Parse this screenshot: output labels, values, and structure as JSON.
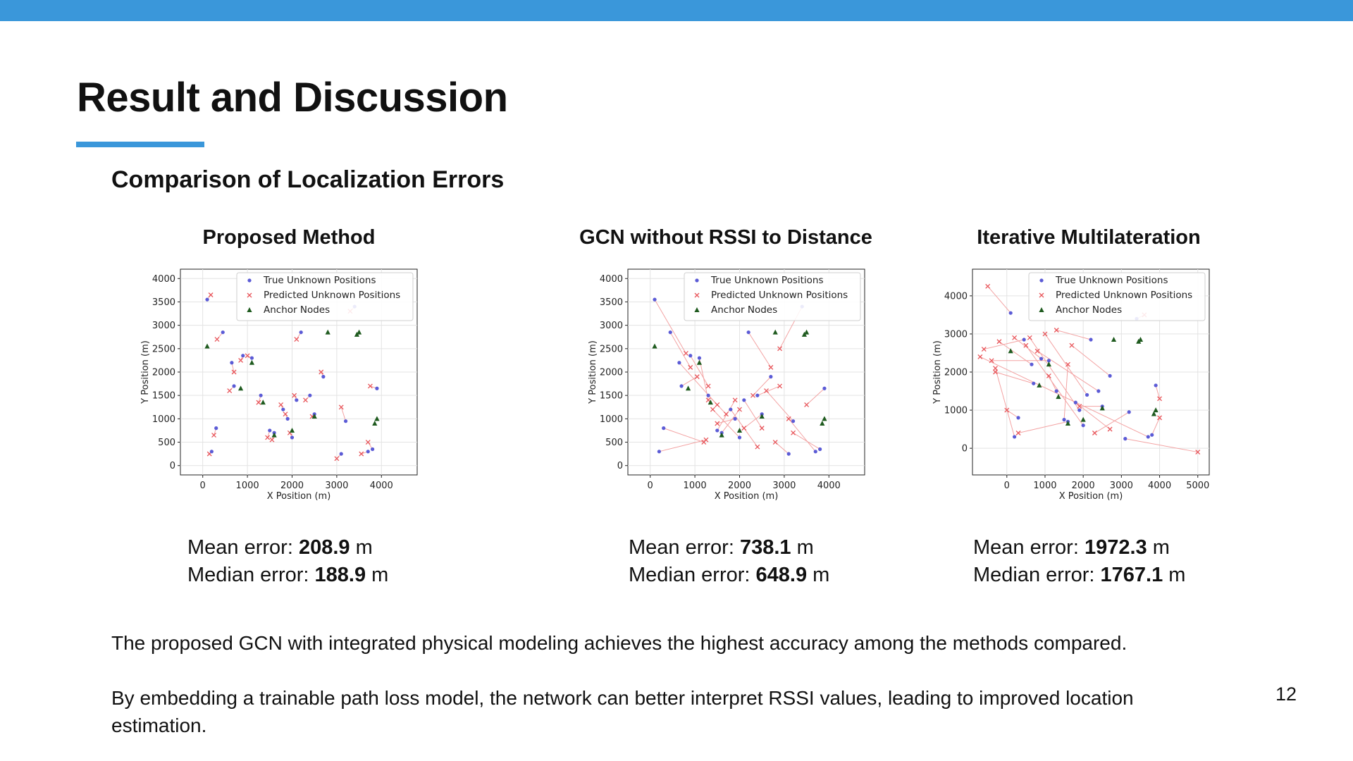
{
  "colors": {
    "accent": "#3a97da",
    "true_points": "#5b5bd6",
    "predicted_points": "#e8555a",
    "anchor_nodes": "#1f5b1f",
    "error_lines": "#f3a3a3"
  },
  "slide": {
    "title": "Result and Discussion",
    "subtitle": "Comparison of Localization Errors",
    "page_number": "12"
  },
  "panels": [
    {
      "title": "Proposed Method",
      "mean_label": "Mean error:",
      "mean_value": "208.9",
      "median_label": "Median error:",
      "median_value": "188.9",
      "unit": "m"
    },
    {
      "title": "GCN without RSSI to Distance",
      "mean_label": "Mean error:",
      "mean_value": "738.1",
      "median_label": "Median error:",
      "median_value": "648.9",
      "unit": "m"
    },
    {
      "title": "Iterative Multilateration",
      "mean_label": "Mean error:",
      "mean_value": "1972.3",
      "median_label": "Median error:",
      "median_value": "1767.1",
      "unit": "m"
    }
  ],
  "body": {
    "paragraph_1": "The proposed GCN with integrated physical modeling achieves the highest accuracy among the methods compared.",
    "paragraph_2": "By embedding a trainable path loss model, the network can better interpret RSSI values, leading to improved location estimation."
  },
  "chart_data": [
    {
      "type": "scatter",
      "title": "Proposed Method",
      "xlabel": "X Position (m)",
      "ylabel": "Y Position (m)",
      "xlim": [
        -500,
        4800
      ],
      "ylim": [
        -200,
        4200
      ],
      "xticks": [
        0,
        1000,
        2000,
        3000,
        4000
      ],
      "yticks": [
        0,
        500,
        1000,
        1500,
        2000,
        2500,
        3000,
        3500,
        4000
      ],
      "grid": true,
      "legend_position": "top-right",
      "legend": [
        "True Unknown Positions",
        "Predicted Unknown Positions",
        "Anchor Nodes"
      ],
      "series": [
        {
          "name": "True Unknown Positions",
          "marker": "dot",
          "x": [
            100,
            450,
            1100,
            650,
            300,
            200,
            1600,
            1900,
            2100,
            2700,
            3100,
            3900,
            3700,
            2400,
            1300,
            2000,
            3200,
            3800,
            2200,
            1500,
            700,
            2500,
            3400,
            900,
            1800
          ],
          "y": [
            3550,
            2850,
            2300,
            2200,
            800,
            300,
            700,
            1000,
            1400,
            1900,
            250,
            1650,
            300,
            1500,
            1500,
            600,
            950,
            350,
            2850,
            750,
            1700,
            1100,
            3400,
            2350,
            1200
          ]
        },
        {
          "name": "Predicted Unknown Positions",
          "marker": "x",
          "x": [
            180,
            320,
            1000,
            700,
            250,
            150,
            1550,
            1850,
            2050,
            2650,
            3000,
            3750,
            3550,
            2300,
            1250,
            1950,
            3100,
            3700,
            2100,
            1450,
            600,
            2450,
            3300,
            850,
            1750
          ],
          "y": [
            3650,
            2700,
            2350,
            2000,
            650,
            250,
            550,
            1100,
            1500,
            2000,
            150,
            1700,
            250,
            1400,
            1350,
            700,
            1250,
            500,
            2700,
            600,
            1600,
            1050,
            3300,
            2250,
            1300
          ]
        },
        {
          "name": "Anchor Nodes",
          "marker": "triangle",
          "x": [
            100,
            850,
            1100,
            1350,
            1600,
            2000,
            2800,
            3500,
            3850,
            3900,
            3450,
            2500
          ],
          "y": [
            2550,
            1650,
            2200,
            1350,
            650,
            750,
            2850,
            2850,
            900,
            1000,
            2800,
            1050
          ]
        }
      ]
    },
    {
      "type": "scatter",
      "title": "GCN without RSSI to Distance",
      "xlabel": "X Position (m)",
      "ylabel": "Y Position (m)",
      "xlim": [
        -500,
        4800
      ],
      "ylim": [
        -200,
        4200
      ],
      "xticks": [
        0,
        1000,
        2000,
        3000,
        4000
      ],
      "yticks": [
        0,
        500,
        1000,
        1500,
        2000,
        2500,
        3000,
        3500,
        4000
      ],
      "grid": true,
      "legend_position": "top-right",
      "legend": [
        "True Unknown Positions",
        "Predicted Unknown Positions",
        "Anchor Nodes"
      ],
      "series": [
        {
          "name": "True Unknown Positions",
          "marker": "dot",
          "x": [
            100,
            450,
            1100,
            650,
            300,
            200,
            1600,
            1900,
            2100,
            2700,
            3100,
            3900,
            3700,
            2400,
            1300,
            2000,
            3200,
            3800,
            2200,
            1500,
            700,
            2500,
            3400,
            900,
            1800
          ],
          "y": [
            3550,
            2850,
            2300,
            2200,
            800,
            300,
            700,
            1000,
            1400,
            1900,
            250,
            1650,
            300,
            1500,
            1500,
            600,
            950,
            350,
            2850,
            750,
            1700,
            1100,
            3400,
            2350,
            1200
          ]
        },
        {
          "name": "Predicted Unknown Positions",
          "marker": "x",
          "x": [
            800,
            900,
            1300,
            1500,
            1200,
            1250,
            2000,
            1500,
            2500,
            2300,
            2800,
            3500,
            3100,
            2900,
            1700,
            1400,
            2600,
            3200,
            2700,
            1900,
            1050,
            2100,
            2900,
            1300,
            2400
          ],
          "y": [
            2400,
            2100,
            1400,
            1300,
            500,
            550,
            1200,
            900,
            800,
            1500,
            500,
            1300,
            1000,
            1700,
            1100,
            1200,
            1600,
            700,
            2100,
            1400,
            1900,
            800,
            2500,
            1700,
            400
          ]
        },
        {
          "name": "Anchor Nodes",
          "marker": "triangle",
          "x": [
            100,
            850,
            1100,
            1350,
            1600,
            2000,
            2800,
            3500,
            3850,
            3900,
            3450,
            2500
          ],
          "y": [
            2550,
            1650,
            2200,
            1350,
            650,
            750,
            2850,
            2850,
            900,
            1000,
            2800,
            1050
          ]
        }
      ]
    },
    {
      "type": "scatter",
      "title": "Iterative Multilateration",
      "xlabel": "X Position (m)",
      "ylabel": "Y Position (m)",
      "xlim": [
        -900,
        5300
      ],
      "ylim": [
        -700,
        4700
      ],
      "xticks": [
        0,
        1000,
        2000,
        3000,
        4000,
        5000
      ],
      "yticks": [
        0,
        1000,
        2000,
        3000,
        4000
      ],
      "grid": true,
      "legend_position": "top-right",
      "legend": [
        "True Unknown Positions",
        "Predicted Unknown Positions",
        "Anchor Nodes"
      ],
      "series": [
        {
          "name": "True Unknown Positions",
          "marker": "dot",
          "x": [
            100,
            450,
            1100,
            650,
            300,
            200,
            1600,
            1900,
            2100,
            2700,
            3100,
            3900,
            3700,
            2400,
            1300,
            2000,
            3200,
            3800,
            2200,
            1500,
            700,
            2500,
            3400,
            900,
            1800
          ],
          "y": [
            3550,
            2850,
            2300,
            2200,
            800,
            300,
            700,
            1000,
            1400,
            1900,
            250,
            1650,
            300,
            1500,
            1500,
            600,
            950,
            350,
            2850,
            750,
            1700,
            1100,
            3400,
            2350,
            1200
          ]
        },
        {
          "name": "Predicted Unknown Positions",
          "marker": "x",
          "x": [
            -500,
            -600,
            -400,
            -200,
            0,
            -300,
            300,
            600,
            1000,
            1700,
            5000,
            4000,
            -700,
            800,
            1100,
            500,
            2300,
            4000,
            1300,
            1600,
            -300,
            1900,
            3600,
            200,
            2700
          ],
          "y": [
            4250,
            2600,
            2300,
            2800,
            1000,
            2100,
            400,
            2900,
            3000,
            2700,
            -100,
            1300,
            2400,
            2550,
            1900,
            2700,
            400,
            800,
            3100,
            2200,
            2000,
            1100,
            3500,
            2900,
            500
          ]
        },
        {
          "name": "Anchor Nodes",
          "marker": "triangle",
          "x": [
            100,
            850,
            1100,
            1350,
            1600,
            2000,
            2800,
            3500,
            3850,
            3900,
            3450,
            2500
          ],
          "y": [
            2550,
            1650,
            2200,
            1350,
            650,
            750,
            2850,
            2850,
            900,
            1000,
            2800,
            1050
          ]
        }
      ]
    }
  ]
}
